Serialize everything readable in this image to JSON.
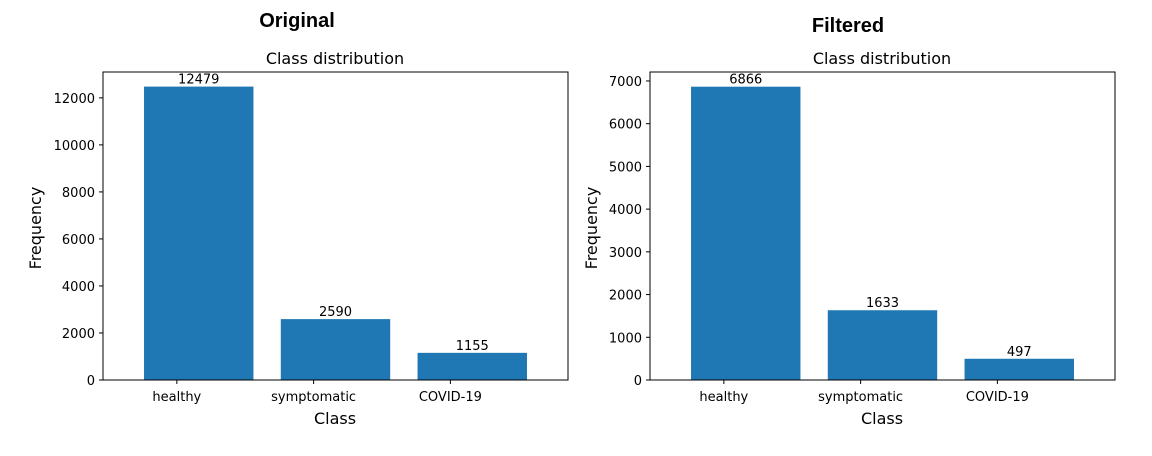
{
  "figure": {
    "left_heading": "Original",
    "right_heading": "Filtered"
  },
  "chart_data": [
    {
      "type": "bar",
      "title": "Class distribution",
      "xlabel": "Class",
      "ylabel": "Frequency",
      "categories": [
        "healthy",
        "symptomatic",
        "COVID-19"
      ],
      "values": [
        12479,
        2590,
        1155
      ],
      "ylim": [
        0,
        13100
      ],
      "yticks": [
        0,
        2000,
        4000,
        6000,
        8000,
        10000,
        12000
      ],
      "bar_color": "#1f77b4",
      "grid": false
    },
    {
      "type": "bar",
      "title": "Class distribution",
      "xlabel": "Class",
      "ylabel": "Frequency",
      "categories": [
        "healthy",
        "symptomatic",
        "COVID-19"
      ],
      "values": [
        6866,
        1633,
        497
      ],
      "ylim": [
        0,
        7210
      ],
      "yticks": [
        0,
        1000,
        2000,
        3000,
        4000,
        5000,
        6000,
        7000
      ],
      "bar_color": "#1f77b4",
      "grid": false
    }
  ]
}
